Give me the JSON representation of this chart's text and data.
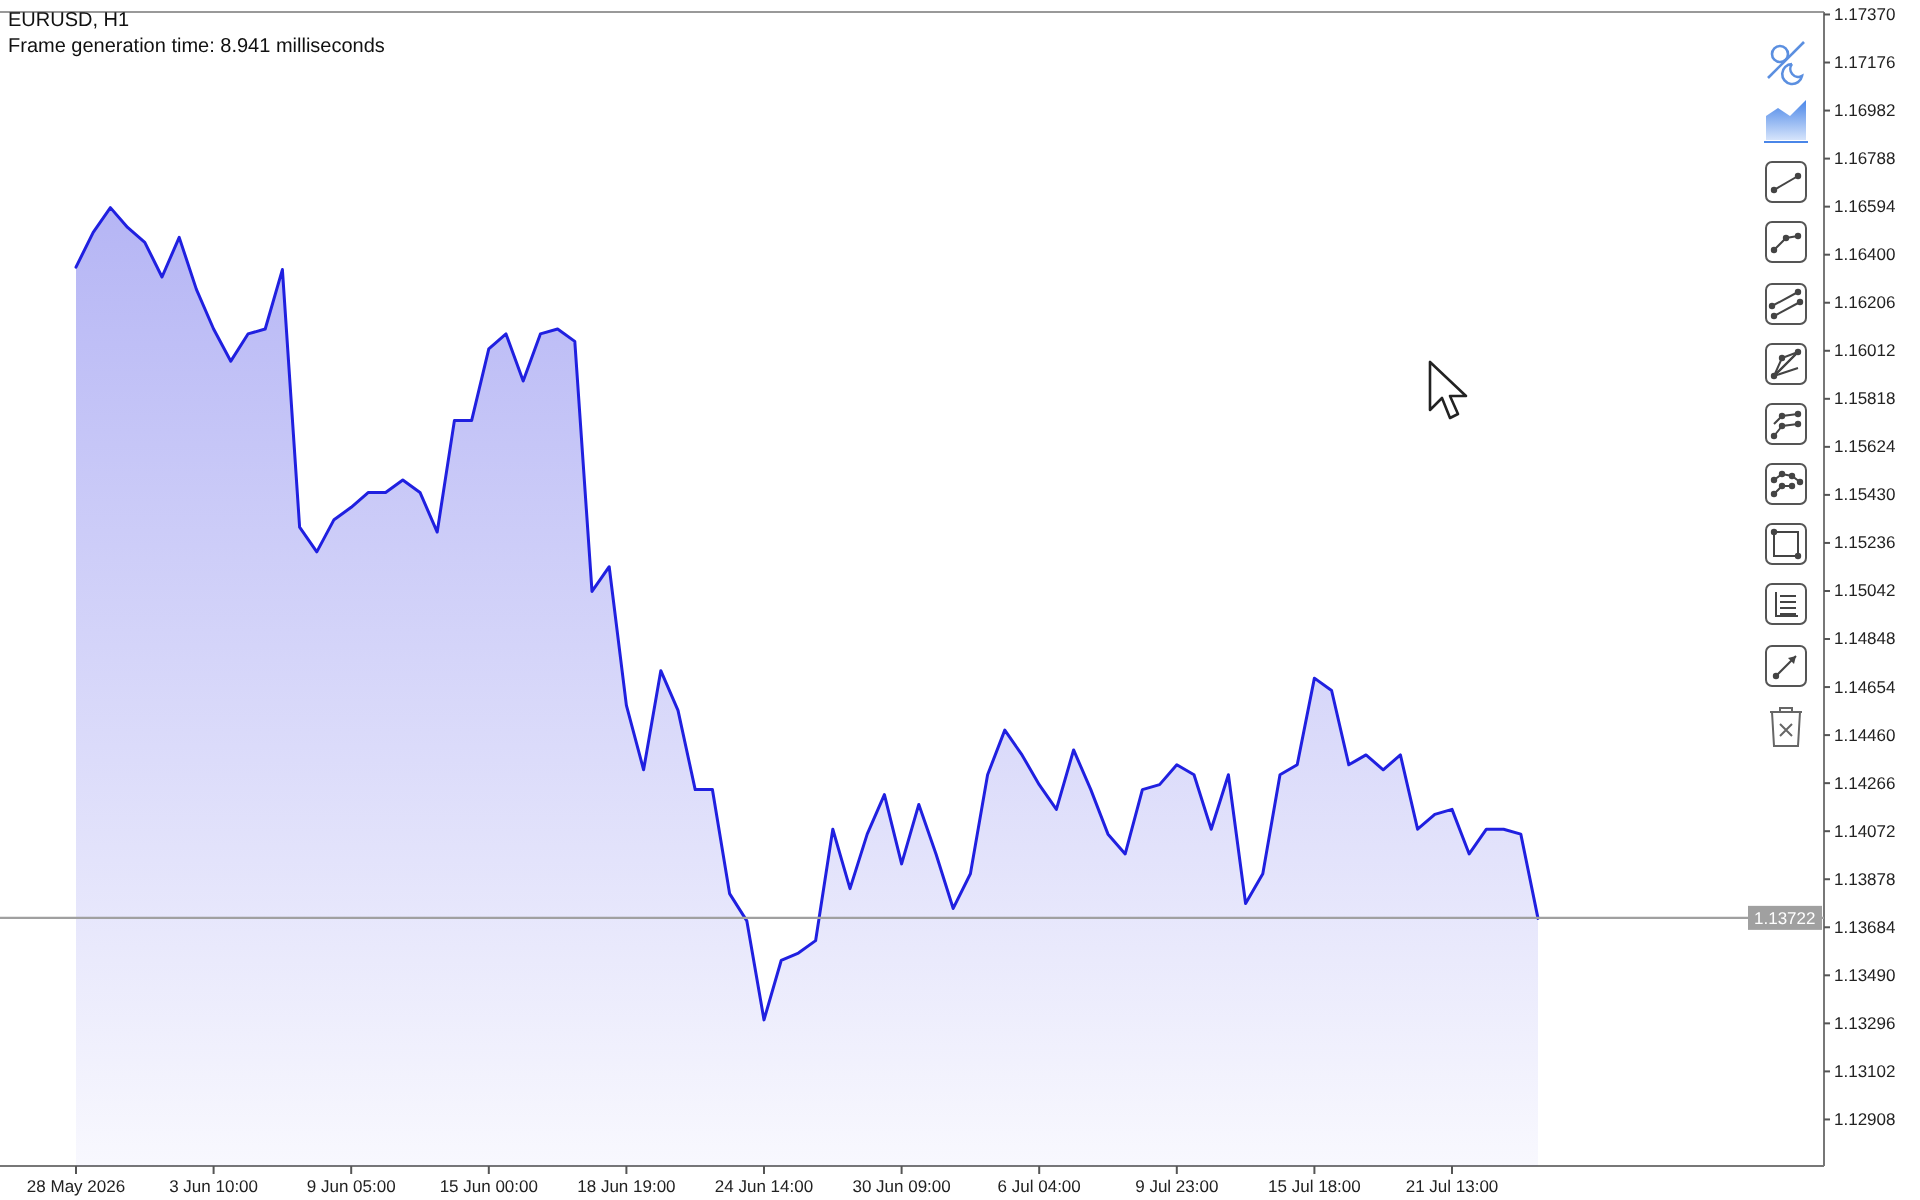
{
  "chart_data": {
    "type": "area",
    "title": "EURUSD, H1",
    "subtitle": "Frame generation time: 8.941 milliseconds",
    "categories": [
      "28 May 2026",
      null,
      null,
      null,
      null,
      null,
      null,
      null,
      "3 Jun 10:00",
      null,
      null,
      null,
      null,
      null,
      null,
      null,
      "9 Jun 05:00",
      null,
      null,
      null,
      null,
      null,
      null,
      null,
      "15 Jun 00:00",
      null,
      null,
      null,
      null,
      null,
      null,
      null,
      "18 Jun 19:00",
      null,
      null,
      null,
      null,
      null,
      null,
      null,
      "24 Jun 14:00",
      null,
      null,
      null,
      null,
      null,
      null,
      null,
      "30 Jun 09:00",
      null,
      null,
      null,
      null,
      null,
      null,
      null,
      "6 Jul 04:00",
      null,
      null,
      null,
      null,
      null,
      null,
      null,
      "9 Jul 23:00",
      null,
      null,
      null,
      null,
      null,
      null,
      null,
      "15 Jul 18:00",
      null,
      null,
      null,
      null,
      null,
      null,
      null,
      "21 Jul 13:00",
      null,
      null,
      null,
      null,
      null
    ],
    "series": [
      {
        "color": "#2020e0",
        "values": [
          1.1635,
          1.1649,
          1.1659,
          1.1651,
          1.1645,
          1.1631,
          1.1647,
          1.1626,
          1.161,
          1.1597,
          1.1608,
          1.161,
          1.1634,
          1.153,
          1.152,
          1.1533,
          1.1538,
          1.1544,
          1.1544,
          1.1549,
          1.1544,
          1.1528,
          1.1573,
          1.1573,
          1.1602,
          1.1608,
          1.1589,
          1.1608,
          1.161,
          1.1605,
          1.1504,
          1.1514,
          1.1458,
          1.1432,
          1.1472,
          1.1456,
          1.1424,
          1.1424,
          1.1382,
          1.1371,
          1.1331,
          1.1355,
          1.1358,
          1.1363,
          1.1408,
          1.1384,
          1.1406,
          1.1422,
          1.1394,
          1.1418,
          1.1398,
          1.1376,
          1.139,
          1.143,
          1.1448,
          1.1438,
          1.1426,
          1.1416,
          1.144,
          1.1424,
          1.1406,
          1.1398,
          1.1424,
          1.1426,
          1.1434,
          1.143,
          1.1408,
          1.143,
          1.1378,
          1.139,
          1.143,
          1.1434,
          1.1469,
          1.1464,
          1.1434,
          1.1438,
          1.1432,
          1.1438,
          1.1408,
          1.1414,
          1.1416,
          1.1398,
          1.1408,
          1.1408,
          1.1406,
          1.1372
        ]
      }
    ],
    "ylim": [
      1.1272,
      1.1738
    ],
    "yticks": [
      1.12908,
      1.13102,
      1.13296,
      {
        "value": 1.1349,
        "label": "1.13490"
      },
      1.13684,
      1.13878,
      1.14072,
      1.14266,
      {
        "value": 1.1446,
        "label": "1.14460"
      },
      1.14654,
      1.14848,
      1.15042,
      1.15236,
      {
        "value": 1.1543,
        "label": "1.15430"
      },
      1.15624,
      1.15818,
      1.16012,
      1.16206,
      {
        "value": 1.164,
        "label": "1.16400"
      },
      1.16594,
      1.16788,
      1.16982,
      1.17176,
      {
        "value": 1.1737,
        "label": "1.17370"
      }
    ],
    "ref_lines": [
      {
        "axis": "y",
        "value": 1.13722,
        "label": "1.13722",
        "color": "#a0a0a0"
      }
    ]
  }
}
